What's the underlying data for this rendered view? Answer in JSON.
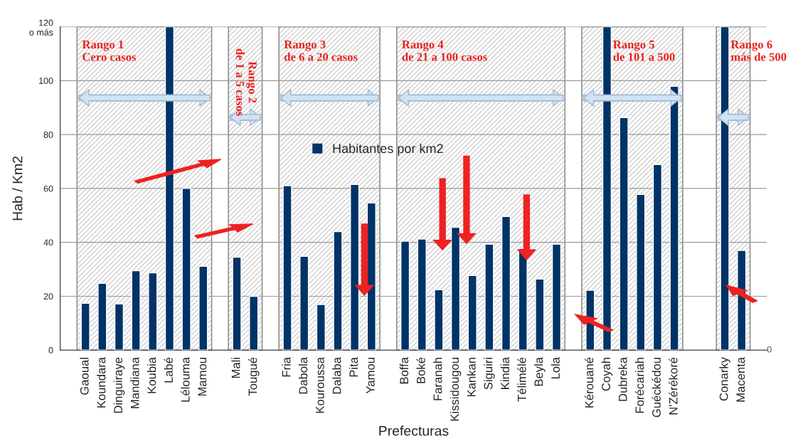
{
  "chart_data": {
    "type": "bar",
    "xlabel": "Prefecturas",
    "ylabel": "Hab / Km2",
    "categories": [
      "Gaoual",
      "Koundara",
      "Dinguiraye",
      "Mandiana",
      "Koubia",
      "Labé",
      "Lélouma",
      "Mamou",
      null,
      "Mali",
      "Tougué",
      null,
      "Fria",
      "Dabola",
      "Kouroussa",
      "Dalaba",
      "Pita",
      "Yamou",
      null,
      "Boffa",
      "Boké",
      "Faranah",
      "Kissidougou",
      "Kankan",
      "Siguiri",
      "Kindia",
      "Télimélé",
      "Beyla",
      "Lola",
      null,
      "Kérouané",
      "Coyah",
      "Dubreka",
      "Forécariah",
      "Guéckédou",
      "N'Zérékoré",
      null,
      null,
      "Conarky",
      "Macenta"
    ],
    "series": [
      {
        "name": "Habitantes por km2",
        "color": "#003366",
        "values": [
          17.4,
          24.8,
          17.1,
          29.5,
          28.7,
          120,
          60,
          31.1,
          null,
          34.5,
          20,
          null,
          61,
          34.8,
          16.9,
          44,
          61.5,
          54.6,
          null,
          40.4,
          41.2,
          22.4,
          45.6,
          27.7,
          39.3,
          49.6,
          37.7,
          26.4,
          39.3,
          null,
          22.2,
          120,
          86.3,
          57.8,
          68.9,
          97.9,
          null,
          null,
          120,
          37
        ]
      }
    ],
    "ylim": [
      0,
      120
    ],
    "yticks": [
      0,
      20,
      40,
      60,
      80,
      100,
      {
        "value": 120,
        "label": "120\no más"
      }
    ],
    "grid": "y",
    "legend": "center",
    "bands": [
      {
        "axis": "x",
        "from": "Gaoual",
        "to": "Mamou",
        "label": "Rango 1\nCero casos",
        "color": "#d0d0d0"
      },
      {
        "axis": "x",
        "from": "Mali",
        "to": "Tougué",
        "label": "Rango 2\nde 1 a 5 casos",
        "color": "#d0d0d0"
      },
      {
        "axis": "x",
        "from": "Fria",
        "to": "Yamou",
        "label": "Rango 3\nde 6 a 20 casos",
        "color": "#d0d0d0"
      },
      {
        "axis": "x",
        "from": "Boffa",
        "to": "Lola",
        "label": "Rango 4\nde 21 a 100 casos",
        "color": "#d0d0d0"
      },
      {
        "axis": "x",
        "from": "Kérouané",
        "to": "N'Zérékoré",
        "label": "Rango 5\nde 101 a 500",
        "color": "#d0d0d0"
      },
      {
        "axis": "x",
        "from": "Conarky",
        "to": "Macenta",
        "label": "Rango 6\nmás de 500",
        "color": "#d0d0d0"
      }
    ],
    "annotations": [
      "0"
    ]
  }
}
